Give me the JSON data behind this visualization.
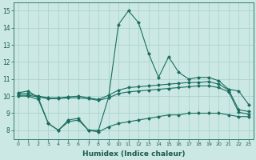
{
  "xlabel": "Humidex (Indice chaleur)",
  "xlim": [
    -0.5,
    23.5
  ],
  "ylim": [
    7.5,
    15.5
  ],
  "xticks": [
    0,
    1,
    2,
    3,
    4,
    5,
    6,
    7,
    8,
    9,
    10,
    11,
    12,
    13,
    14,
    15,
    16,
    17,
    18,
    19,
    20,
    21,
    22,
    23
  ],
  "yticks": [
    8,
    9,
    10,
    11,
    12,
    13,
    14,
    15
  ],
  "background_color": "#cce8e4",
  "grid_color": "#aad4cc",
  "line_color": "#1a6e60",
  "x": [
    0,
    1,
    2,
    3,
    4,
    5,
    6,
    7,
    8,
    9,
    10,
    11,
    12,
    13,
    14,
    15,
    16,
    17,
    18,
    19,
    20,
    21,
    22,
    23
  ],
  "line_max": [
    10.2,
    10.3,
    9.9,
    8.4,
    8.0,
    8.6,
    8.7,
    8.0,
    8.0,
    9.9,
    14.2,
    15.0,
    14.3,
    12.5,
    11.1,
    12.3,
    11.4,
    11.0,
    11.1,
    11.1,
    10.9,
    10.4,
    10.3,
    9.5
  ],
  "line_p90": [
    10.15,
    10.15,
    10.0,
    9.9,
    9.9,
    9.95,
    10.0,
    9.9,
    9.8,
    10.05,
    10.35,
    10.5,
    10.55,
    10.6,
    10.65,
    10.7,
    10.75,
    10.8,
    10.8,
    10.85,
    10.7,
    10.35,
    9.2,
    9.1
  ],
  "line_mean": [
    10.05,
    10.05,
    9.95,
    9.85,
    9.85,
    9.9,
    9.9,
    9.85,
    9.75,
    9.9,
    10.15,
    10.25,
    10.3,
    10.35,
    10.4,
    10.45,
    10.5,
    10.55,
    10.6,
    10.6,
    10.5,
    10.25,
    9.05,
    8.95
  ],
  "line_min": [
    10.0,
    10.0,
    9.8,
    8.4,
    8.0,
    8.5,
    8.6,
    8.0,
    7.9,
    8.2,
    8.4,
    8.5,
    8.6,
    8.7,
    8.8,
    8.9,
    8.9,
    9.0,
    9.0,
    9.0,
    9.0,
    8.9,
    8.8,
    8.8
  ]
}
